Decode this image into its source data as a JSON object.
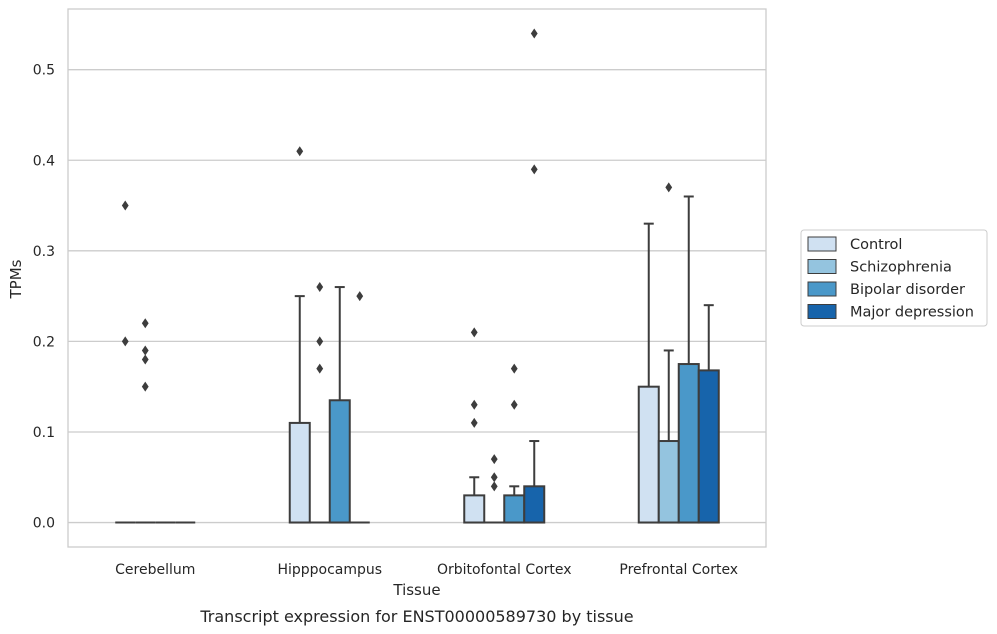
{
  "chart_data": {
    "type": "box",
    "xlabel": "Tissue",
    "ylabel": "TPMs",
    "caption": "Transcript expression for ENST00000589730 by tissue",
    "ylim": [
      -0.027,
      0.567
    ],
    "yticks": [
      "0.0",
      "0.1",
      "0.2",
      "0.3",
      "0.4",
      "0.5"
    ],
    "grid": true,
    "legend_position": "right",
    "categories": [
      "Cerebellum",
      "Hipppocampus",
      "Orbitofontal Cortex",
      "Prefrontal Cortex"
    ],
    "series": [
      {
        "name": "Control",
        "color": "#d0e1f2",
        "boxes": [
          {
            "q1": 0,
            "median": 0,
            "q3": 0,
            "whisker_low": 0,
            "whisker_high": 0,
            "outliers": [
              0.35,
              0.2
            ]
          },
          {
            "q1": 0,
            "median": 0,
            "q3": 0.11,
            "whisker_low": 0,
            "whisker_high": 0.25,
            "outliers": [
              0.41
            ]
          },
          {
            "q1": 0,
            "median": 0,
            "q3": 0.03,
            "whisker_low": 0,
            "whisker_high": 0.05,
            "outliers": [
              0.21,
              0.13,
              0.11
            ]
          },
          {
            "q1": 0,
            "median": 0,
            "q3": 0.15,
            "whisker_low": 0,
            "whisker_high": 0.33,
            "outliers": []
          }
        ]
      },
      {
        "name": "Schizophrenia",
        "color": "#94c4df",
        "boxes": [
          {
            "q1": 0,
            "median": 0,
            "q3": 0,
            "whisker_low": 0,
            "whisker_high": 0,
            "outliers": [
              0.22,
              0.19,
              0.18,
              0.15
            ]
          },
          {
            "q1": 0,
            "median": 0,
            "q3": 0,
            "whisker_low": 0,
            "whisker_high": 0,
            "outliers": [
              0.26,
              0.2,
              0.17
            ]
          },
          {
            "q1": 0,
            "median": 0,
            "q3": 0,
            "whisker_low": 0,
            "whisker_high": 0,
            "outliers": [
              0.07,
              0.05,
              0.04
            ]
          },
          {
            "q1": 0,
            "median": 0,
            "q3": 0.09,
            "whisker_low": 0,
            "whisker_high": 0.19,
            "outliers": [
              0.37
            ]
          }
        ]
      },
      {
        "name": "Bipolar disorder",
        "color": "#4a98c9",
        "boxes": [
          {
            "q1": 0,
            "median": 0,
            "q3": 0,
            "whisker_low": 0,
            "whisker_high": 0,
            "outliers": []
          },
          {
            "q1": 0,
            "median": 0,
            "q3": 0.135,
            "whisker_low": 0,
            "whisker_high": 0.26,
            "outliers": []
          },
          {
            "q1": 0,
            "median": 0,
            "q3": 0.03,
            "whisker_low": 0,
            "whisker_high": 0.04,
            "outliers": [
              0.17,
              0.13
            ]
          },
          {
            "q1": 0,
            "median": 0,
            "q3": 0.175,
            "whisker_low": 0,
            "whisker_high": 0.36,
            "outliers": []
          }
        ]
      },
      {
        "name": "Major depression",
        "color": "#1764ab",
        "boxes": [
          {
            "q1": 0,
            "median": 0,
            "q3": 0,
            "whisker_low": 0,
            "whisker_high": 0,
            "outliers": []
          },
          {
            "q1": 0,
            "median": 0,
            "q3": 0,
            "whisker_low": 0,
            "whisker_high": 0,
            "outliers": [
              0.25
            ]
          },
          {
            "q1": 0,
            "median": 0,
            "q3": 0.04,
            "whisker_low": 0,
            "whisker_high": 0.09,
            "outliers": [
              0.54,
              0.39
            ]
          },
          {
            "q1": 0,
            "median": 0,
            "q3": 0.168,
            "whisker_low": 0,
            "whisker_high": 0.24,
            "outliers": []
          }
        ]
      }
    ]
  }
}
